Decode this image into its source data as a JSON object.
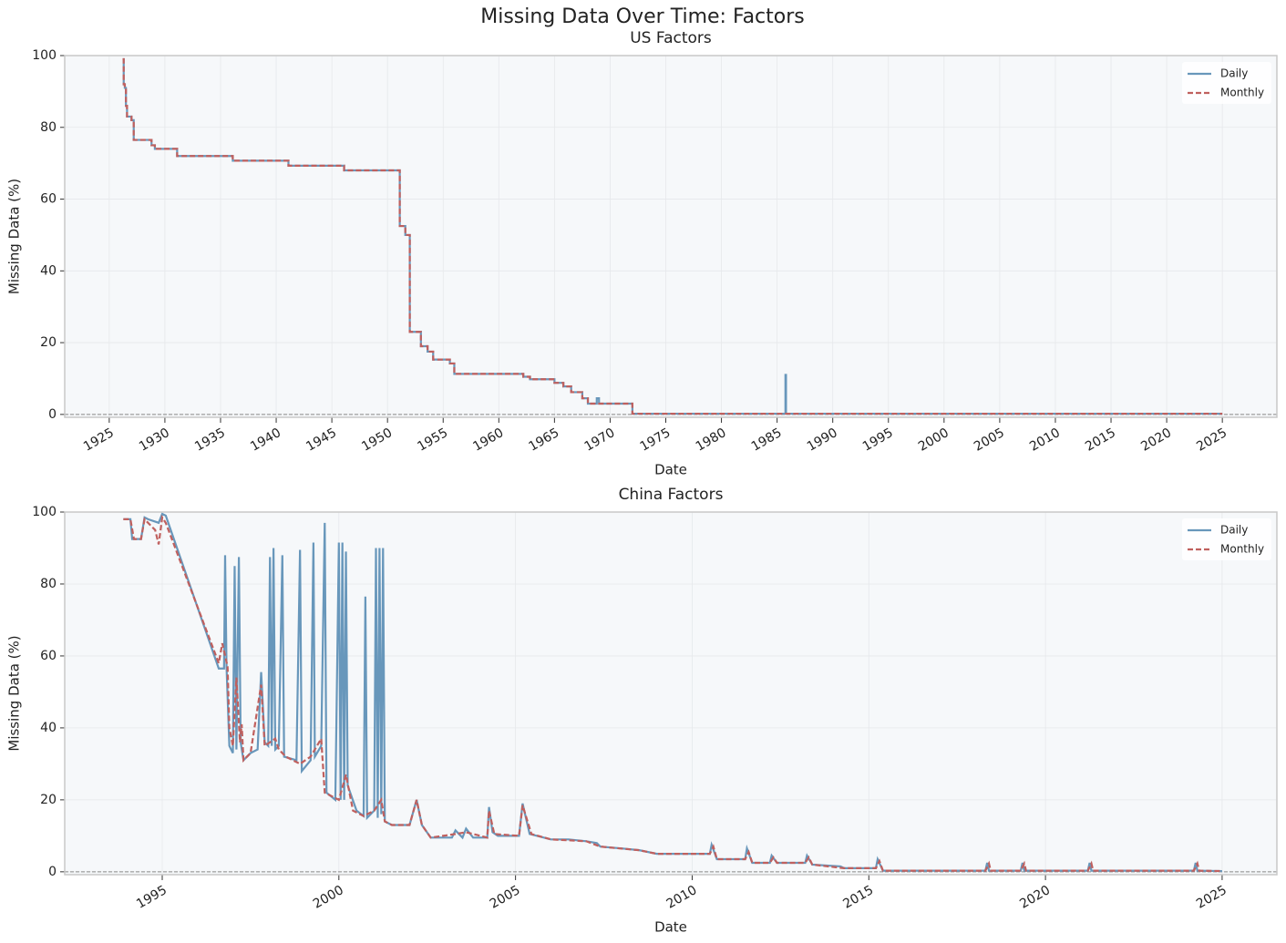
{
  "title": "Missing Data Over Time: Factors",
  "chart_data": [
    {
      "type": "line",
      "title": "US Factors",
      "x_label": "Date",
      "y_label": "Missing Data (%)",
      "drawstyle": "steps-post",
      "grid": true,
      "legend": "upper right",
      "hline": 0,
      "xlim": [
        1921,
        2029.9
      ],
      "ylim": [
        -0.8,
        100
      ],
      "xticks": [
        1925,
        1930,
        1935,
        1940,
        1945,
        1950,
        1955,
        1960,
        1965,
        1970,
        1975,
        1980,
        1985,
        1990,
        1995,
        2000,
        2005,
        2010,
        2015,
        2020,
        2025
      ],
      "yticks": [
        0,
        20,
        40,
        60,
        80,
        100
      ],
      "series": [
        {
          "name": "Daily",
          "color": "#6897bb",
          "linestyle": "solid",
          "x": [
            1926.2,
            1926.3,
            1926.4,
            1926.5,
            1926.6,
            1927.0,
            1927.2,
            1928.8,
            1929.1,
            1931.1,
            1936.1,
            1941.1,
            1946.1,
            1951.1,
            1951.6,
            1952.0,
            1953.0,
            1953.6,
            1954.1,
            1955.6,
            1956.0,
            1962.2,
            1962.8,
            1965.0,
            1965.8,
            1966.5,
            1967.5,
            1968.0,
            1968.8,
            1969.0,
            1972.0,
            1985.75,
            1985.8,
            2025.0
          ],
          "values": [
            99,
            92,
            91,
            86,
            83,
            82,
            76.5,
            75,
            74,
            72,
            70.7,
            69.3,
            68,
            52.5,
            50,
            23,
            19,
            17.5,
            15.3,
            14.2,
            11.3,
            10.5,
            9.8,
            8.8,
            7.8,
            6.2,
            4.5,
            3,
            4.5,
            3,
            0.2,
            11,
            0.2,
            0.2
          ]
        },
        {
          "name": "Monthly",
          "color": "#c0605e",
          "linestyle": "dashed",
          "x": [
            1926.2,
            1926.3,
            1926.4,
            1926.5,
            1926.6,
            1927.0,
            1927.2,
            1928.8,
            1929.1,
            1931.1,
            1936.1,
            1941.1,
            1946.1,
            1951.1,
            1951.6,
            1952.0,
            1953.0,
            1953.6,
            1954.1,
            1955.6,
            1956.0,
            1962.2,
            1962.8,
            1965.0,
            1965.8,
            1966.5,
            1967.5,
            1968.0,
            1972.0,
            2025.0
          ],
          "values": [
            99,
            92,
            91,
            86,
            83,
            82,
            76.5,
            75,
            74,
            72,
            70.7,
            69.3,
            68,
            52.5,
            50,
            23,
            19,
            17.5,
            15.3,
            14.2,
            11.3,
            10.5,
            9.8,
            8.8,
            7.8,
            6.2,
            4.5,
            3,
            0.2,
            0.2
          ]
        }
      ]
    },
    {
      "type": "line",
      "title": "China Factors",
      "x_label": "Date",
      "y_label": "Missing Data (%)",
      "drawstyle": "default",
      "grid": true,
      "legend": "upper right",
      "hline": 0,
      "xlim": [
        1992.24,
        2026.55
      ],
      "ylim": [
        -0.8,
        100
      ],
      "xticks": [
        1995,
        2000,
        2005,
        2010,
        2015,
        2020,
        2025
      ],
      "yticks": [
        0,
        20,
        40,
        60,
        80,
        100
      ],
      "series": [
        {
          "name": "Daily",
          "color": "#6897bb",
          "linestyle": "solid",
          "x": [
            1993.9,
            1994.1,
            1994.15,
            1994.4,
            1994.5,
            1994.6,
            1994.9,
            1995.0,
            1995.1,
            1996.6,
            1996.75,
            1996.78,
            1996.82,
            1996.9,
            1997.0,
            1997.05,
            1997.1,
            1997.17,
            1997.22,
            1997.3,
            1997.5,
            1997.7,
            1997.8,
            1997.9,
            1998.0,
            1998.05,
            1998.1,
            1998.15,
            1998.2,
            1998.3,
            1998.4,
            1998.45,
            1998.8,
            1998.9,
            1998.95,
            1999.2,
            1999.28,
            1999.32,
            1999.5,
            1999.6,
            1999.65,
            1999.9,
            2000.0,
            2000.05,
            2000.1,
            2000.15,
            2000.2,
            2000.25,
            2000.5,
            2000.7,
            2000.75,
            2000.8,
            2001.0,
            2001.05,
            2001.1,
            2001.15,
            2001.2,
            2001.25,
            2001.3,
            2001.5,
            2002.0,
            2002.2,
            2002.35,
            2002.6,
            2003.2,
            2003.3,
            2003.5,
            2003.6,
            2003.8,
            2004.2,
            2004.25,
            2004.35,
            2004.5,
            2005.1,
            2005.2,
            2005.4,
            2005.6,
            2006.0,
            2006.5,
            2007.0,
            2007.3,
            2007.4,
            2008.0,
            2008.5,
            2009.0,
            2010.5,
            2010.55,
            2010.7,
            2011.5,
            2011.55,
            2011.7,
            2012.2,
            2012.25,
            2012.4,
            2013.2,
            2013.25,
            2013.4,
            2014.2,
            2014.3,
            2015.2,
            2015.25,
            2015.4,
            2018.3,
            2018.35,
            2018.4,
            2019.3,
            2019.35,
            2019.4,
            2021.2,
            2021.25,
            2021.3,
            2024.2,
            2024.25,
            2024.3,
            2025.0
          ],
          "values": [
            98,
            98,
            92.5,
            92.5,
            98.5,
            98,
            97,
            99.5,
            99,
            56.5,
            56.5,
            88,
            57,
            35,
            33,
            85,
            34,
            87.5,
            36,
            31,
            33,
            34,
            55.5,
            36,
            35,
            87.5,
            35,
            90,
            34,
            35,
            88,
            32,
            31,
            89.5,
            28,
            31,
            91.5,
            32,
            35,
            97,
            22,
            20,
            91.5,
            20,
            91.5,
            20,
            89,
            24,
            17,
            15.5,
            76.5,
            15,
            17,
            90,
            15,
            90,
            16,
            90,
            14,
            13,
            13,
            20,
            13,
            9.5,
            9.5,
            11.5,
            9.5,
            12,
            9.5,
            9.5,
            18,
            11,
            10,
            10,
            19,
            10.5,
            10,
            9,
            9,
            8.5,
            8,
            7,
            6.5,
            6,
            5,
            5,
            7.5,
            3.5,
            3.5,
            6.5,
            2.5,
            2.5,
            4.5,
            2.5,
            2.5,
            4.5,
            2,
            1.5,
            1,
            1,
            3.5,
            0.3,
            0.3,
            2.5,
            0.3,
            0.3,
            2.5,
            0.3,
            0.3,
            2.5,
            0.3,
            0.3,
            2.5,
            0.3,
            0.2
          ]
        },
        {
          "name": "Monthly",
          "color": "#c0605e",
          "linestyle": "dashed",
          "x": [
            1993.9,
            1994.1,
            1994.2,
            1994.4,
            1994.5,
            1994.8,
            1994.9,
            1995.0,
            1995.1,
            1996.6,
            1996.7,
            1996.85,
            1996.9,
            1997.0,
            1997.1,
            1997.2,
            1997.25,
            1997.3,
            1997.5,
            1997.8,
            1997.9,
            1998.2,
            1998.3,
            1998.5,
            1998.9,
            1999.2,
            1999.5,
            1999.6,
            2000.0,
            2000.2,
            2000.4,
            2000.7,
            2001.0,
            2001.2,
            2001.3,
            2001.5,
            2002.0,
            2002.2,
            2002.35,
            2002.6,
            2003.3,
            2003.6,
            2004.2,
            2004.25,
            2004.4,
            2005.1,
            2005.2,
            2005.45,
            2006.0,
            2007.0,
            2007.4,
            2008.5,
            2009.0,
            2010.5,
            2010.6,
            2010.7,
            2011.5,
            2011.6,
            2011.7,
            2012.2,
            2012.3,
            2012.4,
            2013.2,
            2013.3,
            2013.4,
            2014.3,
            2015.2,
            2015.3,
            2015.4,
            2018.3,
            2018.4,
            2018.45,
            2019.3,
            2019.4,
            2019.45,
            2021.2,
            2021.3,
            2021.35,
            2024.2,
            2024.3,
            2024.35,
            2025.0
          ],
          "values": [
            98,
            98,
            92.5,
            92.5,
            98,
            95,
            91,
            98.5,
            97,
            58,
            63.5,
            57,
            40,
            35,
            54,
            36,
            41,
            31,
            33,
            52,
            35,
            37,
            34,
            32,
            30,
            32,
            37,
            22,
            20,
            27,
            17,
            15.5,
            17,
            20,
            14,
            13,
            13,
            20,
            13,
            9.5,
            10.5,
            11,
            9.5,
            17,
            10.5,
            10,
            18.5,
            10.5,
            9,
            8.5,
            7,
            6,
            5,
            5,
            7,
            3.5,
            3.5,
            5.5,
            2.5,
            2.5,
            4,
            2.5,
            2.5,
            4,
            2,
            1,
            1,
            3,
            0.3,
            0.3,
            2.3,
            0.3,
            0.3,
            2.3,
            0.3,
            0.3,
            2.3,
            0.3,
            0.3,
            2.3,
            0.3,
            0.2
          ]
        }
      ]
    }
  ]
}
